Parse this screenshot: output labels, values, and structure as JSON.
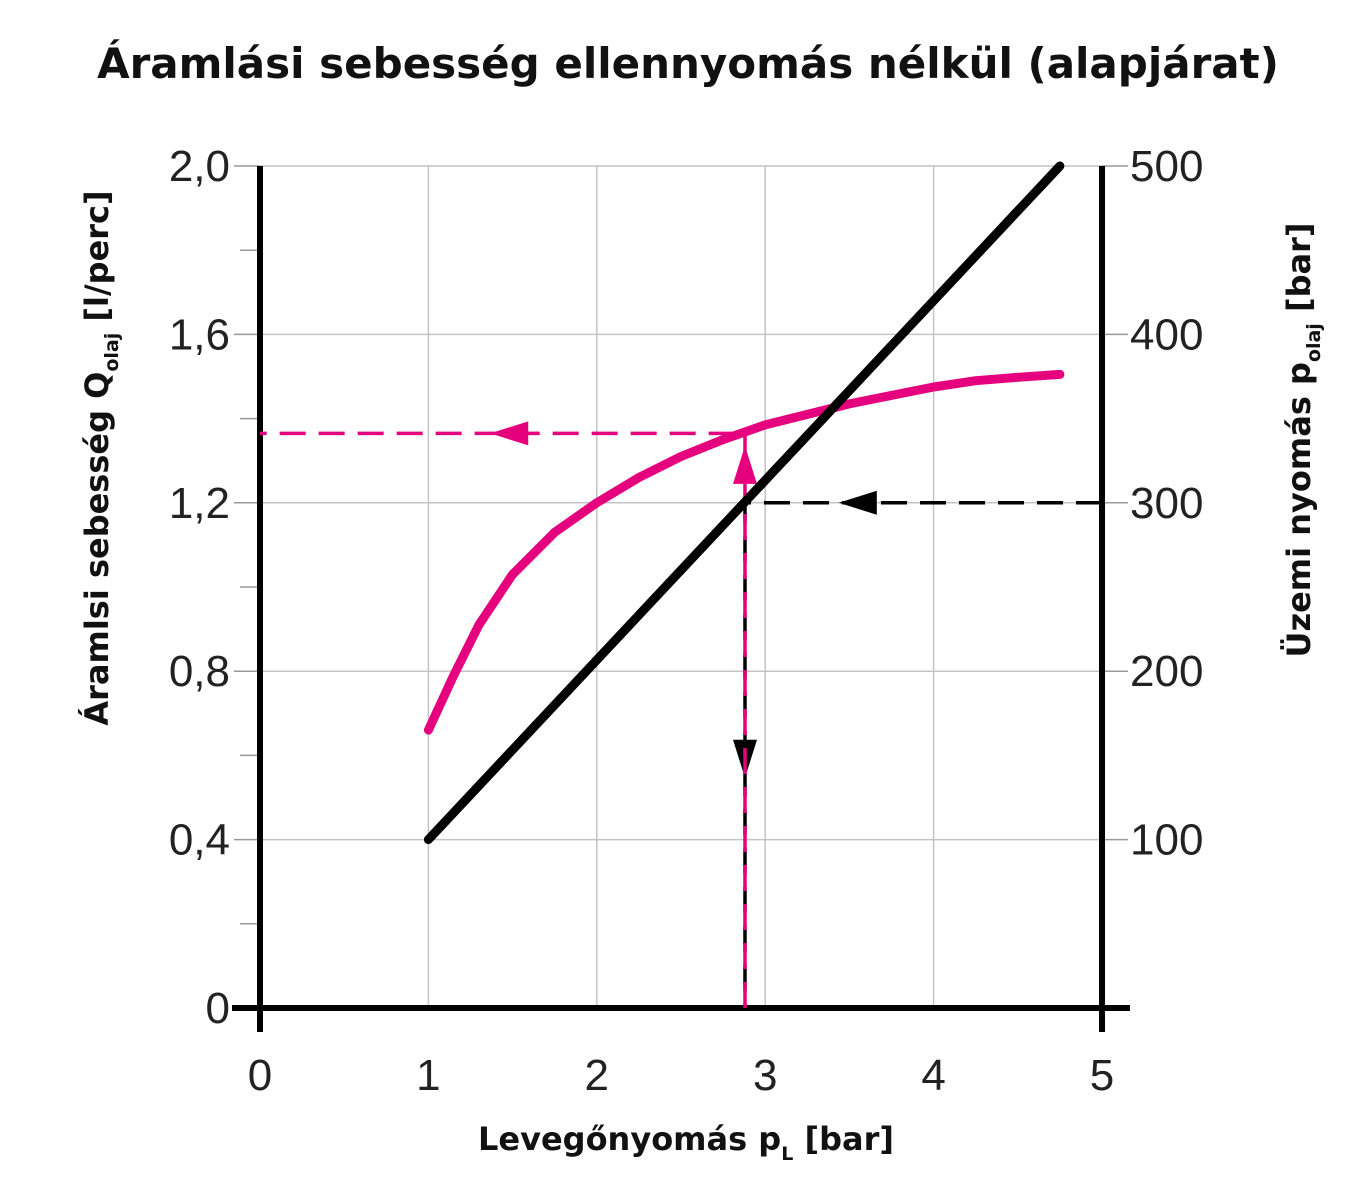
{
  "chart_data": {
    "type": "line",
    "title": "Áramlási sebesség ellennyomás nélkül (alapjárat)",
    "xlabel": {
      "main": "Levegőnyomás p",
      "sub": "L",
      "unit": " [bar]"
    },
    "ylabel_left": {
      "main": "Áramlsi sebesség Q",
      "sub": "olaj",
      "unit": " [l/perc]"
    },
    "ylabel_right": {
      "main": "Üzemi nyomás p",
      "sub": "olaj",
      "unit": " [bar]"
    },
    "xlim": [
      0,
      5
    ],
    "ylim_left": [
      0,
      2.0
    ],
    "ylim_right": [
      0,
      500
    ],
    "x_ticks": [
      "0",
      "1",
      "2",
      "3",
      "4",
      "5"
    ],
    "y_left_ticks": [
      {
        "value": 0,
        "label": "0"
      },
      {
        "value": 0.4,
        "label": "0,4"
      },
      {
        "value": 0.8,
        "label": "0,8"
      },
      {
        "value": 1.2,
        "label": "1,2"
      },
      {
        "value": 1.6,
        "label": "1,6"
      },
      {
        "value": 2.0,
        "label": "2,0"
      }
    ],
    "y_right_ticks": [
      {
        "value": 100,
        "label": "100"
      },
      {
        "value": 200,
        "label": "200"
      },
      {
        "value": 300,
        "label": "300"
      },
      {
        "value": 400,
        "label": "400"
      },
      {
        "value": 500,
        "label": "500"
      }
    ],
    "grid": true,
    "series": [
      {
        "axis": "left",
        "color": "#e5007e",
        "x": [
          1.0,
          1.15,
          1.3,
          1.5,
          1.75,
          2.0,
          2.25,
          2.5,
          2.75,
          3.0,
          3.25,
          3.5,
          3.75,
          4.0,
          4.25,
          4.5,
          4.75
        ],
        "y": [
          0.66,
          0.79,
          0.91,
          1.03,
          1.13,
          1.2,
          1.26,
          1.31,
          1.35,
          1.385,
          1.41,
          1.435,
          1.455,
          1.475,
          1.49,
          1.498,
          1.505
        ]
      },
      {
        "axis": "right",
        "color": "#000000",
        "x": [
          1.0,
          4.75
        ],
        "y": [
          100,
          500
        ]
      }
    ],
    "guides": [
      {
        "color": "#000000",
        "description": "300 bar to curve, down to x",
        "points": [
          [
            5.0,
            300,
            "right"
          ],
          [
            2.88,
            300,
            "right"
          ],
          [
            2.88,
            0,
            "right"
          ]
        ],
        "arrows": [
          [
            3.55,
            300,
            "left",
            "right"
          ],
          [
            2.88,
            148,
            "down",
            "right"
          ]
        ]
      },
      {
        "color": "#e5007e",
        "description": "up from x to Q curve, left to Q axis",
        "points": [
          [
            2.88,
            0,
            "left"
          ],
          [
            2.88,
            1.365,
            "left"
          ],
          [
            0,
            1.365,
            "left"
          ]
        ],
        "arrows": [
          [
            2.88,
            1.29,
            "up",
            "left"
          ],
          [
            1.48,
            1.365,
            "left",
            "left"
          ]
        ]
      }
    ]
  }
}
